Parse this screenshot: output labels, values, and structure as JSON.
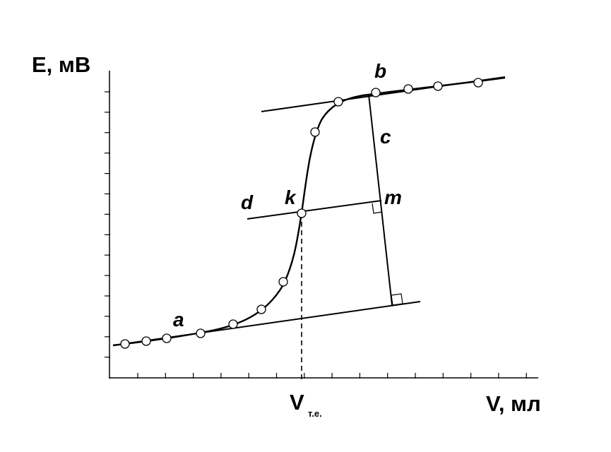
{
  "axes": {
    "y_label": "E, мВ",
    "x_label": "V, мл"
  },
  "equivalence_volume": {
    "symbol": "V",
    "subscript": "т.е."
  },
  "labels": {
    "a": "a",
    "b": "b",
    "c": "c",
    "d": "d",
    "k": "k",
    "m": "m"
  }
}
